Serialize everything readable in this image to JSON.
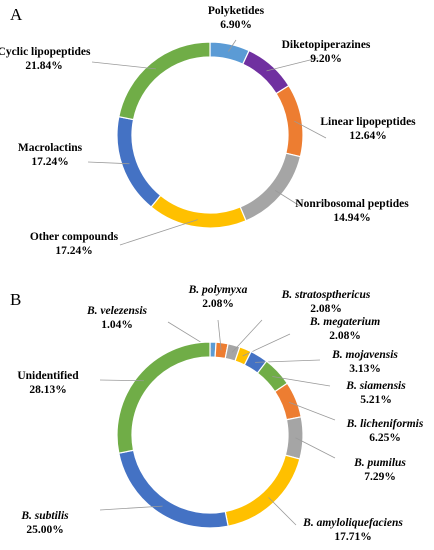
{
  "chart_data": [
    {
      "type": "pie",
      "panel": "A",
      "donut": true,
      "categories": [
        "Polyketides",
        "Diketopiperazines",
        "Linear lipopeptides",
        "Nonribosomal peptides",
        "Other compounds",
        "Macrolactins",
        "Cyclic lipopeptides"
      ],
      "values": [
        6.9,
        9.2,
        12.64,
        14.94,
        17.24,
        17.24,
        21.84
      ],
      "value_labels": [
        "6.90%",
        "9.20%",
        "12.64%",
        "14.94%",
        "17.24%",
        "17.24%",
        "21.84%"
      ],
      "colors": [
        "#5b9bd5",
        "#7030a0",
        "#ed7d31",
        "#a5a5a5",
        "#ffc000",
        "#4472c4",
        "#70ad47"
      ],
      "italic": false
    },
    {
      "type": "pie",
      "panel": "B",
      "donut": true,
      "categories": [
        "B. velezensis",
        "B. polymyxa",
        "B. stratospthericus",
        "B. megaterium",
        "B. mojavensis",
        "B. siamensis",
        "B. licheniformis",
        "B. pumilus",
        "B. amyloliquefaciens",
        "B. subtilis",
        "Unidentified"
      ],
      "values": [
        1.04,
        2.08,
        2.08,
        2.08,
        3.13,
        5.21,
        6.25,
        7.29,
        17.71,
        25.0,
        28.13
      ],
      "value_labels": [
        "1.04%",
        "2.08%",
        "2.08%",
        "2.08%",
        "3.13%",
        "5.21%",
        "6.25%",
        "7.29%",
        "17.71%",
        "25.00%",
        "28.13%"
      ],
      "colors": [
        "#5b9bd5",
        "#ed7d31",
        "#a5a5a5",
        "#ffc000",
        "#4472c4",
        "#70ad47",
        "#ed7d31",
        "#a5a5a5",
        "#ffc000",
        "#4472c4",
        "#70ad47"
      ],
      "italic": [
        true,
        true,
        true,
        true,
        true,
        true,
        true,
        true,
        true,
        true,
        false
      ]
    }
  ]
}
